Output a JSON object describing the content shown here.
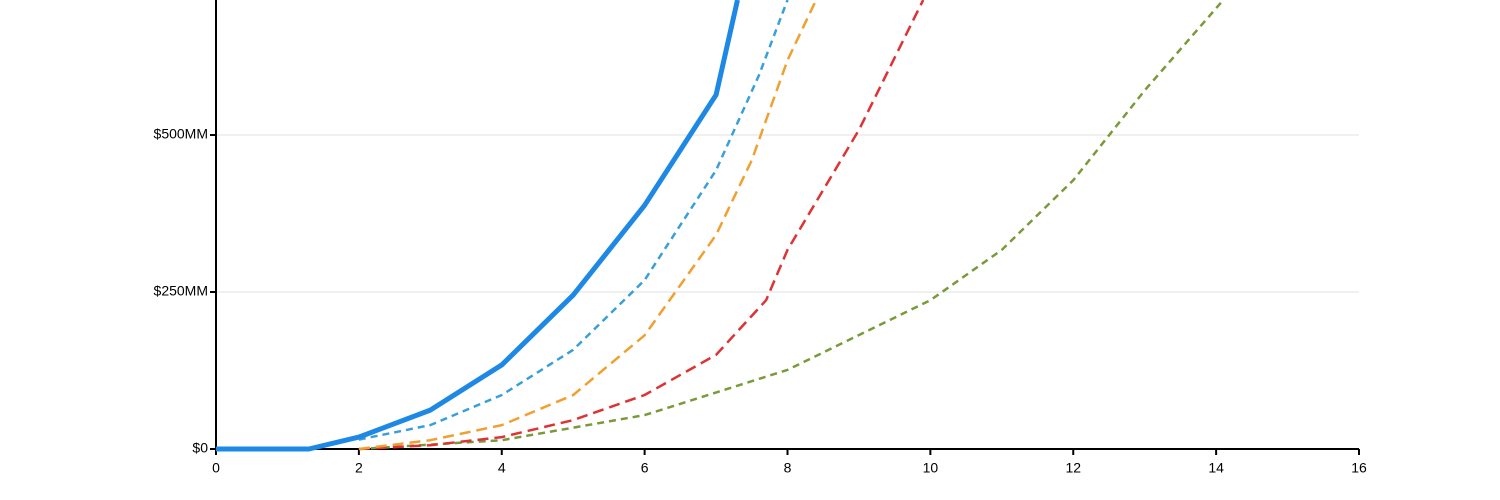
{
  "chart_data": {
    "type": "line",
    "xlim": [
      0,
      16
    ],
    "xticks": [
      0,
      2,
      4,
      6,
      8,
      10,
      12,
      14,
      16
    ],
    "ylim": [
      0,
      715
    ],
    "yticks": [
      {
        "value": 0,
        "label": "$0"
      },
      {
        "value": 250,
        "label": "$250MM"
      },
      {
        "value": 500,
        "label": "$500MM"
      }
    ],
    "grid": true,
    "series": [
      {
        "color": "#1e88e5",
        "style": "solid",
        "x": [
          0,
          1,
          1.3,
          2,
          3,
          4,
          5,
          6,
          7,
          7.3
        ],
        "values": [
          0,
          0,
          0,
          19,
          62,
          134,
          245,
          388,
          564,
          715
        ]
      },
      {
        "color": "#3a9fd8",
        "style": "dashed",
        "x": [
          2,
          3,
          4,
          5,
          6,
          7,
          7.6,
          8
        ],
        "values": [
          15,
          38,
          86,
          158,
          269,
          444,
          595,
          715
        ]
      },
      {
        "color": "#f0a030",
        "style": "dashed",
        "x": [
          2,
          3,
          4,
          5,
          6,
          7,
          7.5,
          8,
          8.4
        ],
        "values": [
          0,
          14,
          38,
          86,
          181,
          341,
          460,
          619,
          715
        ]
      },
      {
        "color": "#dd3333",
        "style": "dashed",
        "x": [
          2,
          3,
          4,
          5,
          6,
          7,
          7.7,
          8,
          9,
          9.9
        ],
        "values": [
          0,
          6,
          19,
          46,
          86,
          150,
          237,
          317,
          508,
          715
        ]
      },
      {
        "color": "#7a9a3a",
        "style": "dashed",
        "x": [
          2,
          4,
          6,
          8,
          10,
          11,
          12,
          13,
          14.1
        ],
        "values": [
          0,
          14,
          54,
          126,
          237,
          317,
          428,
          571,
          715
        ]
      }
    ]
  }
}
